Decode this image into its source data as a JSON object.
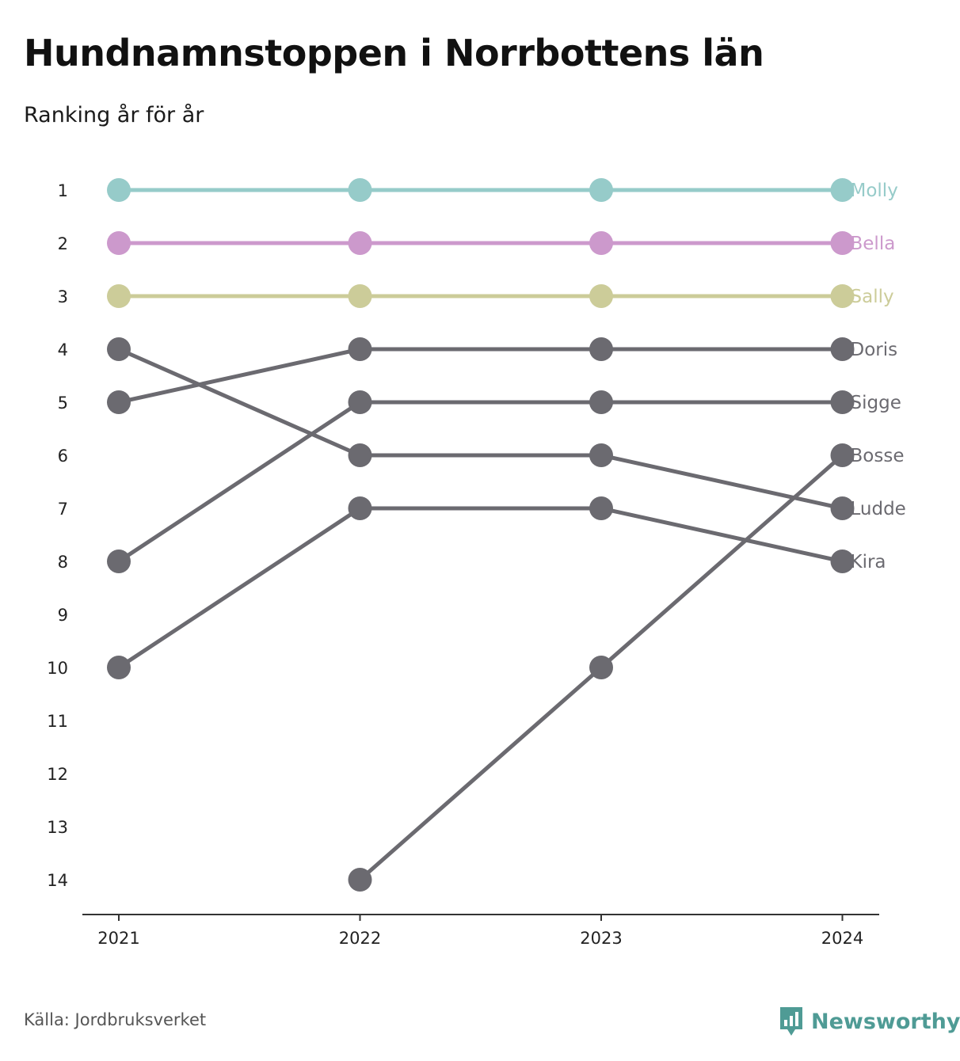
{
  "chart_data": {
    "type": "line",
    "title": "Hundnamnstoppen i Norrbottens län",
    "subtitle": "Ranking år för år",
    "x": [
      "2021",
      "2022",
      "2023",
      "2024"
    ],
    "y_ticks": [
      "1",
      "2",
      "3",
      "4",
      "5",
      "6",
      "7",
      "8",
      "9",
      "10",
      "11",
      "12",
      "13",
      "14"
    ],
    "ylim": [
      1,
      14
    ],
    "y_inverted": true,
    "grid": false,
    "legend": "labels at line ends",
    "series": [
      {
        "name": "Molly",
        "values": [
          1,
          1,
          1,
          1
        ],
        "color": "#96cbc9"
      },
      {
        "name": "Bella",
        "values": [
          2,
          2,
          2,
          2
        ],
        "color": "#cc99cc"
      },
      {
        "name": "Sally",
        "values": [
          3,
          3,
          3,
          3
        ],
        "color": "#cccc99"
      },
      {
        "name": "Doris",
        "values": [
          5,
          4,
          4,
          4
        ],
        "color": "#6b6a70"
      },
      {
        "name": "Sigge",
        "values": [
          8,
          5,
          5,
          5
        ],
        "color": "#6b6a70"
      },
      {
        "name": "Bosse",
        "values": [
          null,
          14,
          10,
          6
        ],
        "color": "#6b6a70"
      },
      {
        "name": "Ludde",
        "values": [
          4,
          6,
          6,
          7
        ],
        "color": "#6b6a70"
      },
      {
        "name": "Kira",
        "values": [
          10,
          7,
          7,
          8
        ],
        "color": "#6b6a70"
      }
    ]
  },
  "source": "Källa: Jordbruksverket",
  "brand": {
    "name": "Newsworthy",
    "icon": "newsworthy-logo-icon",
    "color": "#4f9b95"
  }
}
